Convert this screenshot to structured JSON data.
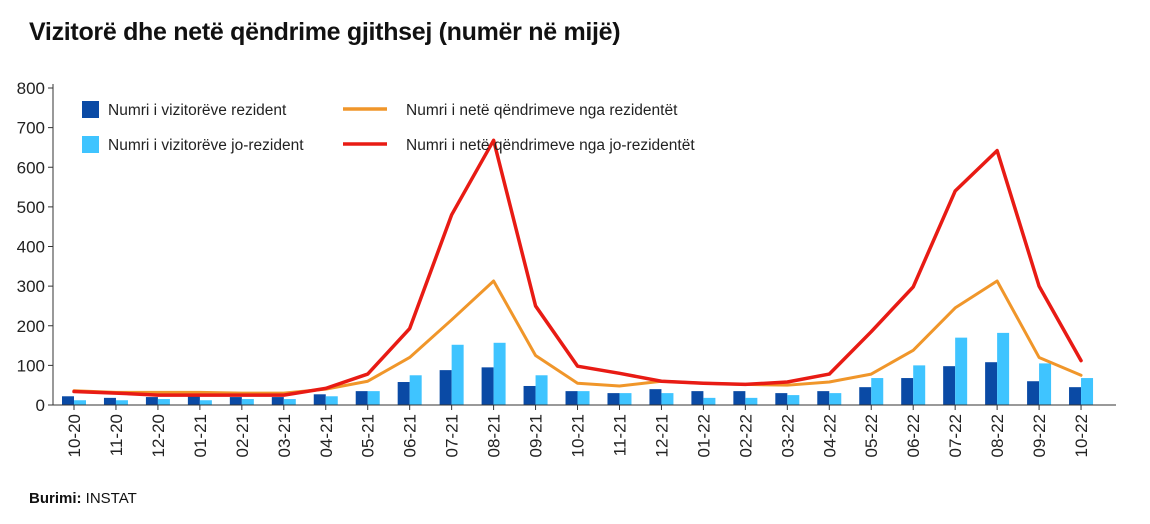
{
  "title": "Vizitorë dhe netë qëndrime gjithsej (numër në mijë)",
  "source": {
    "label": "Burimi:",
    "value": "INSTAT"
  },
  "colors": {
    "resident_bar": "#0a4aa5",
    "nonresident_bar": "#3fc4ff",
    "resident_line": "#f0962a",
    "nonresident_line": "#e81b14"
  },
  "chart_data": {
    "type": "bar",
    "categories": [
      "10-20",
      "11-20",
      "12-20",
      "01-21",
      "02-21",
      "03-21",
      "04-21",
      "05-21",
      "06-21",
      "07-21",
      "08-21",
      "09-21",
      "10-21",
      "11-21",
      "12-21",
      "01-22",
      "02-22",
      "03-22",
      "04-22",
      "05-22",
      "06-22",
      "07-22",
      "08-22",
      "09-22",
      "10-22"
    ],
    "ylim": [
      0,
      800
    ],
    "yticks": [
      0,
      100,
      200,
      300,
      400,
      500,
      600,
      700,
      800
    ],
    "grid": false,
    "legend_position": "top-left",
    "series": [
      {
        "name": "Numri i vizitorëve rezident",
        "type": "bar",
        "values": [
          22,
          18,
          20,
          22,
          20,
          20,
          27,
          35,
          58,
          88,
          95,
          48,
          35,
          30,
          40,
          35,
          35,
          30,
          35,
          45,
          68,
          98,
          108,
          60,
          45
        ]
      },
      {
        "name": "Numri i vizitorëve jo-rezident",
        "type": "bar",
        "values": [
          12,
          12,
          15,
          12,
          15,
          15,
          22,
          35,
          75,
          152,
          157,
          75,
          35,
          30,
          30,
          18,
          18,
          25,
          30,
          68,
          100,
          170,
          182,
          105,
          68
        ]
      },
      {
        "name": "Numri i netë qëndrimeve nga rezidentët",
        "type": "line",
        "values": [
          36,
          32,
          32,
          32,
          30,
          30,
          40,
          60,
          120,
          215,
          313,
          125,
          55,
          48,
          60,
          55,
          52,
          50,
          58,
          78,
          138,
          245,
          313,
          120,
          75
        ]
      },
      {
        "name": "Numri i netë qëndrimeve nga jo-rezidentët",
        "type": "line",
        "values": [
          34,
          30,
          25,
          25,
          25,
          25,
          42,
          78,
          193,
          480,
          668,
          250,
          98,
          80,
          60,
          55,
          52,
          58,
          78,
          185,
          298,
          540,
          642,
          300,
          112
        ]
      }
    ]
  }
}
